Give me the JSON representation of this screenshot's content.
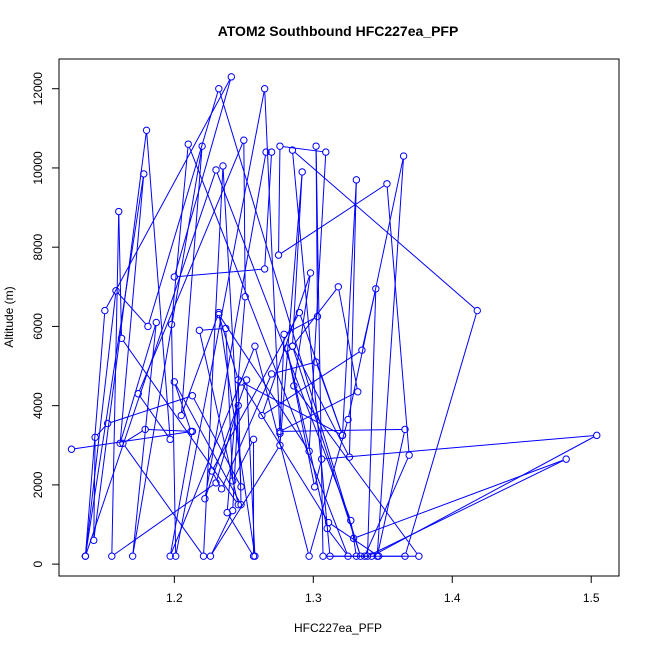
{
  "chart_data": {
    "type": "line",
    "title": "ATOM2 Southbound HFC227ea_PFP",
    "xlabel": "HFC227ea_PFP",
    "ylabel": "Altitude (m)",
    "xlim": [
      1.117,
      1.52
    ],
    "ylim": [
      -300,
      12750
    ],
    "xticks": [
      1.2,
      1.3,
      1.4,
      1.5
    ],
    "xtick_labels": [
      "1.2",
      "1.3",
      "1.4",
      "1.5"
    ],
    "yticks": [
      0,
      2000,
      4000,
      6000,
      8000,
      10000,
      12000
    ],
    "ytick_labels": [
      "0",
      "2000",
      "4000",
      "6000",
      "8000",
      "10000",
      "12000"
    ],
    "grid": false,
    "legend": "none",
    "line_color": "#0000ff",
    "marker": "open-circle",
    "series": [
      {
        "points": [
          [
            1.126,
            2900
          ],
          [
            1.213,
            3350
          ],
          [
            1.197,
            200
          ],
          [
            1.258,
            5500
          ],
          [
            1.297,
            200
          ],
          [
            1.325,
            3650
          ],
          [
            1.365,
            10300
          ],
          [
            1.346,
            200
          ],
          [
            1.366,
            3400
          ],
          [
            1.276,
            3350
          ],
          [
            1.332,
            4350
          ],
          [
            1.318,
            7000
          ],
          [
            1.285,
            5500
          ],
          [
            1.334,
            200
          ],
          [
            1.232,
            12000
          ],
          [
            1.181,
            6000
          ],
          [
            1.158,
            6900
          ],
          [
            1.136,
            200
          ],
          [
            1.178,
            9850
          ],
          [
            1.161,
            3050
          ],
          [
            1.187,
            6100
          ],
          [
            1.17,
            200
          ],
          [
            1.22,
            10550
          ],
          [
            1.205,
            3750
          ],
          [
            1.232,
            6350
          ],
          [
            1.258,
            200
          ],
          [
            1.252,
            4650
          ],
          [
            1.222,
            1650
          ],
          [
            1.266,
            10400
          ],
          [
            1.27,
            10400
          ],
          [
            1.265,
            7450
          ],
          [
            1.2,
            7250
          ],
          [
            1.241,
            12300
          ],
          [
            1.15,
            6400
          ],
          [
            1.136,
            200
          ],
          [
            1.23,
            9950
          ],
          [
            1.327,
            1100
          ],
          [
            1.331,
            200
          ],
          [
            1.342,
            200
          ],
          [
            1.504,
            3250
          ],
          [
            1.306,
            2650
          ],
          [
            1.301,
            1950
          ],
          [
            1.281,
            5450
          ],
          [
            1.31,
            900
          ],
          [
            1.325,
            200
          ],
          [
            1.21,
            10600
          ],
          [
            1.198,
            6050
          ],
          [
            1.201,
            200
          ],
          [
            1.265,
            12000
          ],
          [
            1.276,
            3300
          ],
          [
            1.279,
            5800
          ],
          [
            1.303,
            6250
          ],
          [
            1.302,
            10550
          ],
          [
            1.307,
            200
          ],
          [
            1.366,
            200
          ],
          [
            1.418,
            6400
          ],
          [
            1.285,
            10450
          ],
          [
            1.312,
            200
          ],
          [
            1.337,
            200
          ],
          [
            1.369,
            2750
          ],
          [
            1.353,
            9600
          ],
          [
            1.275,
            7800
          ],
          [
            1.276,
            10550
          ],
          [
            1.309,
            10400
          ],
          [
            1.297,
            2850
          ],
          [
            1.232,
            6300
          ],
          [
            1.246,
            4650
          ],
          [
            1.248,
            1500
          ],
          [
            1.2,
            4600
          ],
          [
            1.212,
            3350
          ],
          [
            1.179,
            3400
          ],
          [
            1.163,
            3050
          ],
          [
            1.221,
            200
          ],
          [
            1.235,
            10050
          ],
          [
            1.248,
            1950
          ],
          [
            1.213,
            4250
          ],
          [
            1.152,
            3550
          ],
          [
            1.143,
            3200
          ],
          [
            1.142,
            600
          ],
          [
            1.18,
            10950
          ],
          [
            1.197,
            3150
          ],
          [
            1.174,
            4300
          ],
          [
            1.25,
            10700
          ],
          [
            1.251,
            6750
          ],
          [
            1.238,
            1300
          ],
          [
            1.257,
            200
          ],
          [
            1.257,
            3150
          ],
          [
            1.242,
            2100
          ],
          [
            1.237,
            5950
          ],
          [
            1.218,
            5900
          ],
          [
            1.246,
            1500
          ],
          [
            1.162,
            5700
          ],
          [
            1.16,
            8900
          ],
          [
            1.155,
            200
          ],
          [
            1.23,
            2050
          ],
          [
            1.246,
            4000
          ],
          [
            1.242,
            1350
          ],
          [
            1.226,
            200
          ],
          [
            1.276,
            3000
          ],
          [
            1.292,
            9900
          ],
          [
            1.285,
            5500
          ],
          [
            1.326,
            2700
          ],
          [
            1.331,
            9700
          ],
          [
            1.321,
            3250
          ],
          [
            1.29,
            6350
          ],
          [
            1.227,
            2350
          ],
          [
            1.234,
            1900
          ],
          [
            1.27,
            4800
          ],
          [
            1.302,
            5100
          ],
          [
            1.321,
            3250
          ],
          [
            1.248,
            4600
          ],
          [
            1.311,
            1050
          ],
          [
            1.347,
            200
          ],
          [
            1.376,
            200
          ],
          [
            1.286,
            4500
          ],
          [
            1.298,
            7350
          ],
          [
            1.263,
            3750
          ],
          [
            1.335,
            5400
          ],
          [
            1.345,
            6950
          ],
          [
            1.339,
            200
          ],
          [
            1.482,
            2650
          ],
          [
            1.329,
            650
          ]
        ]
      }
    ]
  }
}
